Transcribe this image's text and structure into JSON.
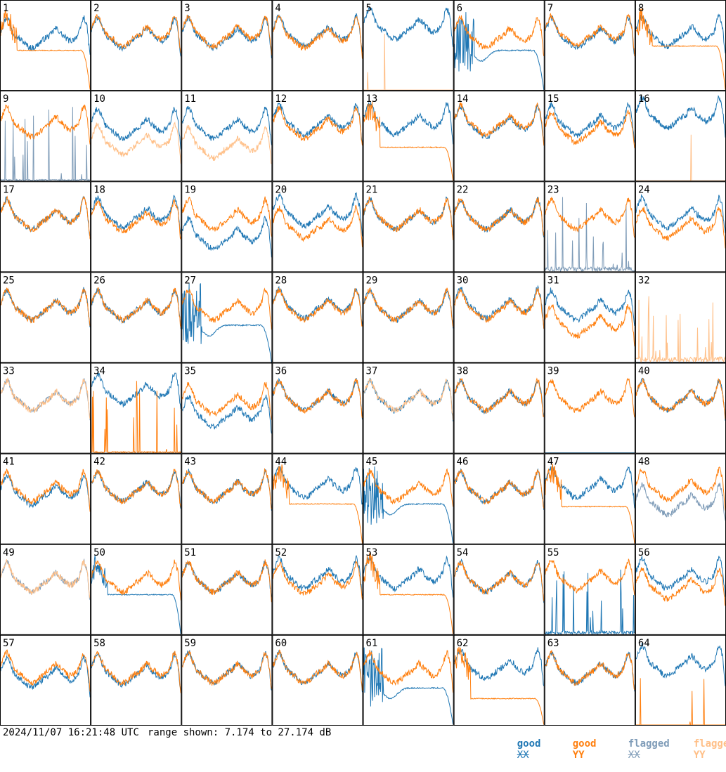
{
  "timestamp": "2024/11/07 16:21:48 UTC",
  "range_text": "range shown: 7.174 to 27.174 dB",
  "legend": [
    {
      "word": "good",
      "pol": "XX",
      "color": "#1f77b4"
    },
    {
      "word": "good",
      "pol": "YY",
      "color": "#ff7f0e"
    },
    {
      "word": "flagged",
      "pol": "XX",
      "color": "#7f9cb8"
    },
    {
      "word": "flagged",
      "pol": "YY",
      "color": "#ffbf87"
    }
  ],
  "chart_data": {
    "type": "line",
    "title": "",
    "xlabel": "",
    "ylabel": "",
    "ylim": [
      7.174,
      27.174
    ],
    "grid": {
      "rows": 8,
      "cols": 8
    },
    "series_legend": [
      "good XX",
      "good YY",
      "flagged XX",
      "flagged YY"
    ],
    "panels": [
      {
        "id": "1",
        "xx": {
          "shape": "normal",
          "level": 0.6,
          "status": "good"
        },
        "yy": {
          "shape": "rolloff",
          "level": 0.45,
          "status": "good"
        }
      },
      {
        "id": "2",
        "xx": {
          "shape": "normal",
          "level": 0.6,
          "status": "good"
        },
        "yy": {
          "shape": "normal",
          "level": 0.62,
          "status": "good"
        }
      },
      {
        "id": "3",
        "xx": {
          "shape": "normal",
          "level": 0.6,
          "status": "good"
        },
        "yy": {
          "shape": "normal",
          "level": 0.62,
          "status": "good"
        }
      },
      {
        "id": "4",
        "xx": {
          "shape": "normal",
          "level": 0.62,
          "status": "good"
        },
        "yy": {
          "shape": "normal",
          "level": 0.6,
          "status": "good"
        }
      },
      {
        "id": "5",
        "xx": {
          "shape": "normal",
          "level": 0.7,
          "status": "good"
        },
        "yy": {
          "shape": "dead",
          "level": 0.0,
          "status": "flagged"
        }
      },
      {
        "id": "6",
        "xx": {
          "shape": "bad",
          "level": 0.45,
          "status": "good"
        },
        "yy": {
          "shape": "normal",
          "level": 0.6,
          "status": "good"
        }
      },
      {
        "id": "7",
        "xx": {
          "shape": "normal",
          "level": 0.6,
          "status": "good"
        },
        "yy": {
          "shape": "normal",
          "level": 0.62,
          "status": "good"
        }
      },
      {
        "id": "8",
        "xx": {
          "shape": "normal",
          "level": 0.62,
          "status": "good"
        },
        "yy": {
          "shape": "rolloff",
          "level": 0.5,
          "status": "good"
        }
      },
      {
        "id": "9",
        "xx": {
          "shape": "spiky",
          "level": 0.1,
          "status": "flagged"
        },
        "yy": {
          "shape": "normal",
          "level": 0.62,
          "status": "good"
        }
      },
      {
        "id": "10",
        "xx": {
          "shape": "normal",
          "level": 0.6,
          "status": "good"
        },
        "yy": {
          "shape": "normal",
          "level": 0.42,
          "status": "flagged"
        }
      },
      {
        "id": "11",
        "xx": {
          "shape": "normal",
          "level": 0.6,
          "status": "good"
        },
        "yy": {
          "shape": "normal",
          "level": 0.38,
          "status": "flagged"
        }
      },
      {
        "id": "12",
        "xx": {
          "shape": "normal",
          "level": 0.64,
          "status": "good"
        },
        "yy": {
          "shape": "normal",
          "level": 0.6,
          "status": "good"
        }
      },
      {
        "id": "13",
        "xx": {
          "shape": "normal",
          "level": 0.65,
          "status": "good"
        },
        "yy": {
          "shape": "rolloff",
          "level": 0.38,
          "status": "good"
        }
      },
      {
        "id": "14",
        "xx": {
          "shape": "normal",
          "level": 0.62,
          "status": "good"
        },
        "yy": {
          "shape": "normal",
          "level": 0.64,
          "status": "good"
        }
      },
      {
        "id": "15",
        "xx": {
          "shape": "normal",
          "level": 0.64,
          "status": "good"
        },
        "yy": {
          "shape": "normal",
          "level": 0.56,
          "status": "good"
        }
      },
      {
        "id": "16",
        "xx": {
          "shape": "normal",
          "level": 0.72,
          "status": "good"
        },
        "yy": {
          "shape": "dead",
          "level": 0.0,
          "status": "flagged"
        }
      },
      {
        "id": "17",
        "xx": {
          "shape": "normal",
          "level": 0.6,
          "status": "good"
        },
        "yy": {
          "shape": "normal",
          "level": 0.6,
          "status": "good"
        }
      },
      {
        "id": "18",
        "xx": {
          "shape": "normal",
          "level": 0.62,
          "status": "good"
        },
        "yy": {
          "shape": "normal",
          "level": 0.57,
          "status": "good"
        }
      },
      {
        "id": "19",
        "xx": {
          "shape": "normal",
          "level": 0.38,
          "status": "good"
        },
        "yy": {
          "shape": "normal",
          "level": 0.6,
          "status": "good"
        }
      },
      {
        "id": "20",
        "xx": {
          "shape": "normal",
          "level": 0.64,
          "status": "good"
        },
        "yy": {
          "shape": "normal",
          "level": 0.5,
          "status": "good"
        }
      },
      {
        "id": "21",
        "xx": {
          "shape": "normal",
          "level": 0.6,
          "status": "good"
        },
        "yy": {
          "shape": "normal",
          "level": 0.6,
          "status": "good"
        }
      },
      {
        "id": "22",
        "xx": {
          "shape": "normal",
          "level": 0.6,
          "status": "good"
        },
        "yy": {
          "shape": "normal",
          "level": 0.6,
          "status": "good"
        }
      },
      {
        "id": "23",
        "xx": {
          "shape": "spiky",
          "level": 0.35,
          "status": "flagged"
        },
        "yy": {
          "shape": "normal",
          "level": 0.6,
          "status": "good"
        }
      },
      {
        "id": "24",
        "xx": {
          "shape": "normal",
          "level": 0.62,
          "status": "good"
        },
        "yy": {
          "shape": "normal",
          "level": 0.5,
          "status": "good"
        }
      },
      {
        "id": "25",
        "xx": {
          "shape": "normal",
          "level": 0.6,
          "status": "good"
        },
        "yy": {
          "shape": "normal",
          "level": 0.6,
          "status": "good"
        }
      },
      {
        "id": "26",
        "xx": {
          "shape": "normal",
          "level": 0.6,
          "status": "good"
        },
        "yy": {
          "shape": "normal",
          "level": 0.6,
          "status": "good"
        }
      },
      {
        "id": "27",
        "xx": {
          "shape": "bad",
          "level": 0.42,
          "status": "good"
        },
        "yy": {
          "shape": "normal",
          "level": 0.6,
          "status": "good"
        }
      },
      {
        "id": "28",
        "xx": {
          "shape": "normal",
          "level": 0.62,
          "status": "good"
        },
        "yy": {
          "shape": "normal",
          "level": 0.6,
          "status": "good"
        }
      },
      {
        "id": "29",
        "xx": {
          "shape": "normal",
          "level": 0.6,
          "status": "good"
        },
        "yy": {
          "shape": "normal",
          "level": 0.6,
          "status": "good"
        }
      },
      {
        "id": "30",
        "xx": {
          "shape": "normal",
          "level": 0.62,
          "status": "good"
        },
        "yy": {
          "shape": "normal",
          "level": 0.6,
          "status": "good"
        }
      },
      {
        "id": "31",
        "xx": {
          "shape": "normal",
          "level": 0.6,
          "status": "good"
        },
        "yy": {
          "shape": "normal",
          "level": 0.42,
          "status": "good"
        }
      },
      {
        "id": "32",
        "xx": {
          "shape": "dead",
          "level": 0.0,
          "status": "flagged"
        },
        "yy": {
          "shape": "spiky",
          "level": 0.4,
          "status": "flagged"
        }
      },
      {
        "id": "33",
        "xx": {
          "shape": "normal",
          "level": 0.6,
          "status": "flagged"
        },
        "yy": {
          "shape": "normal",
          "level": 0.6,
          "status": "flagged"
        }
      },
      {
        "id": "34",
        "xx": {
          "shape": "normal",
          "level": 0.68,
          "status": "good"
        },
        "yy": {
          "shape": "spiky",
          "level": 0.1,
          "status": "good"
        }
      },
      {
        "id": "35",
        "xx": {
          "shape": "normal",
          "level": 0.42,
          "status": "good"
        },
        "yy": {
          "shape": "normal",
          "level": 0.56,
          "status": "good"
        }
      },
      {
        "id": "36",
        "xx": {
          "shape": "normal",
          "level": 0.6,
          "status": "good"
        },
        "yy": {
          "shape": "normal",
          "level": 0.6,
          "status": "good"
        }
      },
      {
        "id": "37",
        "xx": {
          "shape": "normal",
          "level": 0.6,
          "status": "good"
        },
        "yy": {
          "shape": "normal",
          "level": 0.6,
          "status": "flagged"
        }
      },
      {
        "id": "38",
        "xx": {
          "shape": "normal",
          "level": 0.6,
          "status": "good"
        },
        "yy": {
          "shape": "normal",
          "level": 0.6,
          "status": "good"
        }
      },
      {
        "id": "39",
        "xx": {
          "shape": "dead",
          "level": 0.0,
          "status": "good"
        },
        "yy": {
          "shape": "normal",
          "level": 0.6,
          "status": "good"
        }
      },
      {
        "id": "40",
        "xx": {
          "shape": "normal",
          "level": 0.6,
          "status": "good"
        },
        "yy": {
          "shape": "normal",
          "level": 0.6,
          "status": "good"
        }
      },
      {
        "id": "41",
        "xx": {
          "shape": "normal",
          "level": 0.56,
          "status": "good"
        },
        "yy": {
          "shape": "normal",
          "level": 0.6,
          "status": "good"
        }
      },
      {
        "id": "42",
        "xx": {
          "shape": "normal",
          "level": 0.6,
          "status": "good"
        },
        "yy": {
          "shape": "normal",
          "level": 0.6,
          "status": "good"
        }
      },
      {
        "id": "43",
        "xx": {
          "shape": "normal",
          "level": 0.6,
          "status": "good"
        },
        "yy": {
          "shape": "normal",
          "level": 0.6,
          "status": "good"
        }
      },
      {
        "id": "44",
        "xx": {
          "shape": "normal",
          "level": 0.64,
          "status": "good"
        },
        "yy": {
          "shape": "rolloff",
          "level": 0.45,
          "status": "good"
        }
      },
      {
        "id": "45",
        "xx": {
          "shape": "bad",
          "level": 0.45,
          "status": "good"
        },
        "yy": {
          "shape": "normal",
          "level": 0.6,
          "status": "good"
        }
      },
      {
        "id": "46",
        "xx": {
          "shape": "normal",
          "level": 0.6,
          "status": "good"
        },
        "yy": {
          "shape": "normal",
          "level": 0.6,
          "status": "good"
        }
      },
      {
        "id": "47",
        "xx": {
          "shape": "normal",
          "level": 0.64,
          "status": "good"
        },
        "yy": {
          "shape": "rolloff",
          "level": 0.42,
          "status": "good"
        }
      },
      {
        "id": "48",
        "xx": {
          "shape": "normal",
          "level": 0.45,
          "status": "flagged"
        },
        "yy": {
          "shape": "normal",
          "level": 0.62,
          "status": "good"
        }
      },
      {
        "id": "49",
        "xx": {
          "shape": "normal",
          "level": 0.6,
          "status": "flagged"
        },
        "yy": {
          "shape": "normal",
          "level": 0.6,
          "status": "flagged"
        }
      },
      {
        "id": "50",
        "xx": {
          "shape": "rolloff",
          "level": 0.45,
          "status": "good"
        },
        "yy": {
          "shape": "normal",
          "level": 0.6,
          "status": "good"
        }
      },
      {
        "id": "51",
        "xx": {
          "shape": "normal",
          "level": 0.6,
          "status": "good"
        },
        "yy": {
          "shape": "normal",
          "level": 0.6,
          "status": "good"
        }
      },
      {
        "id": "52",
        "xx": {
          "shape": "normal",
          "level": 0.64,
          "status": "good"
        },
        "yy": {
          "shape": "normal",
          "level": 0.58,
          "status": "good"
        }
      },
      {
        "id": "53",
        "xx": {
          "shape": "normal",
          "level": 0.64,
          "status": "good"
        },
        "yy": {
          "shape": "rolloff",
          "level": 0.45,
          "status": "good"
        }
      },
      {
        "id": "54",
        "xx": {
          "shape": "normal",
          "level": 0.6,
          "status": "good"
        },
        "yy": {
          "shape": "normal",
          "level": 0.6,
          "status": "good"
        }
      },
      {
        "id": "55",
        "xx": {
          "shape": "spiky",
          "level": 0.25,
          "status": "good"
        },
        "yy": {
          "shape": "normal",
          "level": 0.62,
          "status": "good"
        }
      },
      {
        "id": "56",
        "xx": {
          "shape": "normal",
          "level": 0.64,
          "status": "good"
        },
        "yy": {
          "shape": "normal",
          "level": 0.52,
          "status": "good"
        }
      },
      {
        "id": "57",
        "xx": {
          "shape": "normal",
          "level": 0.55,
          "status": "good"
        },
        "yy": {
          "shape": "normal",
          "level": 0.6,
          "status": "good"
        }
      },
      {
        "id": "58",
        "xx": {
          "shape": "normal",
          "level": 0.58,
          "status": "good"
        },
        "yy": {
          "shape": "normal",
          "level": 0.6,
          "status": "good"
        }
      },
      {
        "id": "59",
        "xx": {
          "shape": "normal",
          "level": 0.6,
          "status": "good"
        },
        "yy": {
          "shape": "normal",
          "level": 0.6,
          "status": "good"
        }
      },
      {
        "id": "60",
        "xx": {
          "shape": "normal",
          "level": 0.6,
          "status": "good"
        },
        "yy": {
          "shape": "normal",
          "level": 0.6,
          "status": "good"
        }
      },
      {
        "id": "61",
        "xx": {
          "shape": "bad",
          "level": 0.42,
          "status": "good"
        },
        "yy": {
          "shape": "normal",
          "level": 0.6,
          "status": "good"
        }
      },
      {
        "id": "62",
        "xx": {
          "shape": "normal",
          "level": 0.64,
          "status": "good"
        },
        "yy": {
          "shape": "rolloff",
          "level": 0.3,
          "status": "good"
        }
      },
      {
        "id": "63",
        "xx": {
          "shape": "normal",
          "level": 0.6,
          "status": "good"
        },
        "yy": {
          "shape": "normal",
          "level": 0.6,
          "status": "good"
        }
      },
      {
        "id": "64",
        "xx": {
          "shape": "normal",
          "level": 0.68,
          "status": "good"
        },
        "yy": {
          "shape": "dead",
          "level": 0.0,
          "status": "good"
        }
      }
    ]
  }
}
